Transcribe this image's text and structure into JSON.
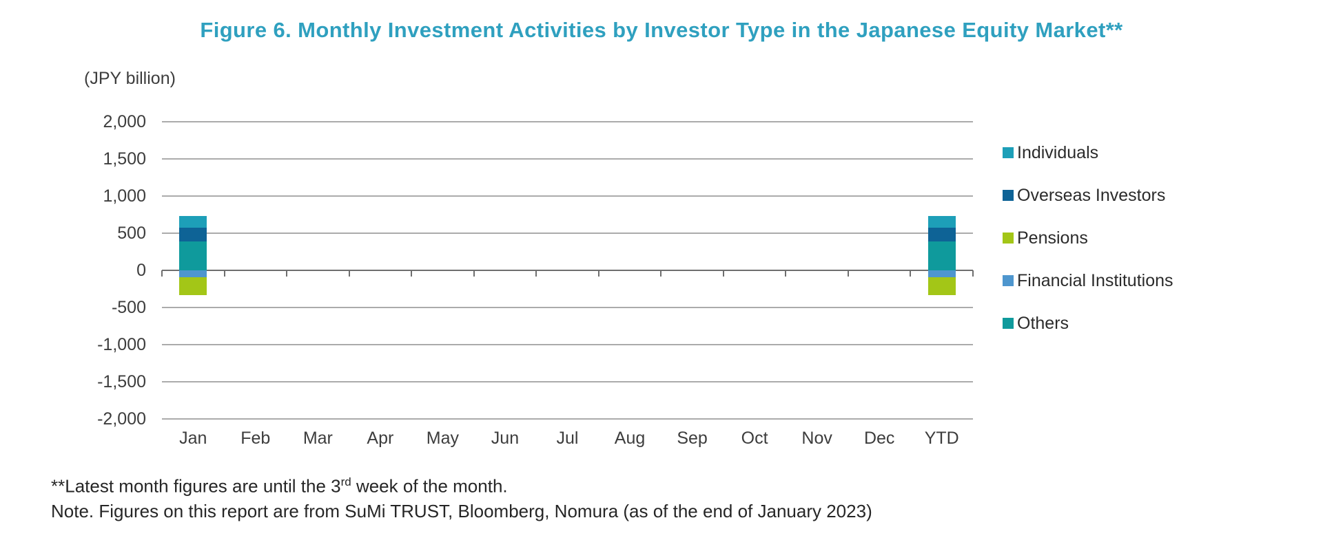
{
  "figure": {
    "title": "Figure 6. Monthly Investment Activities by Investor Type in the Japanese Equity Market**",
    "unit_label": "(JPY billion)",
    "footnote_line1": {
      "prefix": "**Latest month figures are until the 3",
      "superscript": "rd",
      "suffix": " week of the month."
    },
    "footnote_line2": "Note. Figures on this report are from SuMi TRUST, Bloomberg, Nomura (as of the end of January 2023)"
  },
  "colors": {
    "title_text": "#2FA0BF",
    "axis_text": "#3d3d3d",
    "gridline": "#ABABAB",
    "axis_line": "#6e6e6e",
    "footnote_text": "#262626"
  },
  "chart_data": {
    "type": "bar",
    "stacked": true,
    "title": "Figure 6. Monthly Investment Activities by Investor Type in the Japanese Equity Market**",
    "ylabel": "(JPY billion)",
    "xlabel": "",
    "categories": [
      "Jan",
      "Feb",
      "Mar",
      "Apr",
      "May",
      "Jun",
      "Jul",
      "Aug",
      "Sep",
      "Oct",
      "Nov",
      "Dec",
      "YTD"
    ],
    "series": [
      {
        "name": "Individuals",
        "color": "#1D9FB8",
        "values": [
          160,
          0,
          0,
          0,
          0,
          0,
          0,
          0,
          0,
          0,
          0,
          0,
          160
        ]
      },
      {
        "name": "Overseas Investors",
        "color": "#0E6396",
        "values": [
          185,
          0,
          0,
          0,
          0,
          0,
          0,
          0,
          0,
          0,
          0,
          0,
          185
        ]
      },
      {
        "name": "Pensions",
        "color": "#A3C617",
        "values": [
          -240,
          0,
          0,
          0,
          0,
          0,
          0,
          0,
          0,
          0,
          0,
          0,
          -240
        ]
      },
      {
        "name": "Financial Institutions",
        "color": "#4E96CE",
        "values": [
          -90,
          0,
          0,
          0,
          0,
          0,
          0,
          0,
          0,
          0,
          0,
          0,
          -90
        ]
      },
      {
        "name": "Others",
        "color": "#0F9A9C",
        "values": [
          390,
          0,
          0,
          0,
          0,
          0,
          0,
          0,
          0,
          0,
          0,
          0,
          390
        ]
      }
    ],
    "stack_order_from_zero": [
      "Others",
      "Overseas Investors",
      "Individuals",
      "Financial Institutions",
      "Pensions"
    ],
    "legend_order": [
      "Individuals",
      "Overseas Investors",
      "Pensions",
      "Financial Institutions",
      "Others"
    ],
    "legend_position": "right",
    "grid": true,
    "ylim": [
      -2000,
      2000
    ],
    "ytick_step": 500,
    "ytick_labels": [
      "2,000",
      "1,500",
      "1,000",
      "500",
      "0",
      "-500",
      "-1,000",
      "-1,500",
      "-2,000"
    ]
  }
}
